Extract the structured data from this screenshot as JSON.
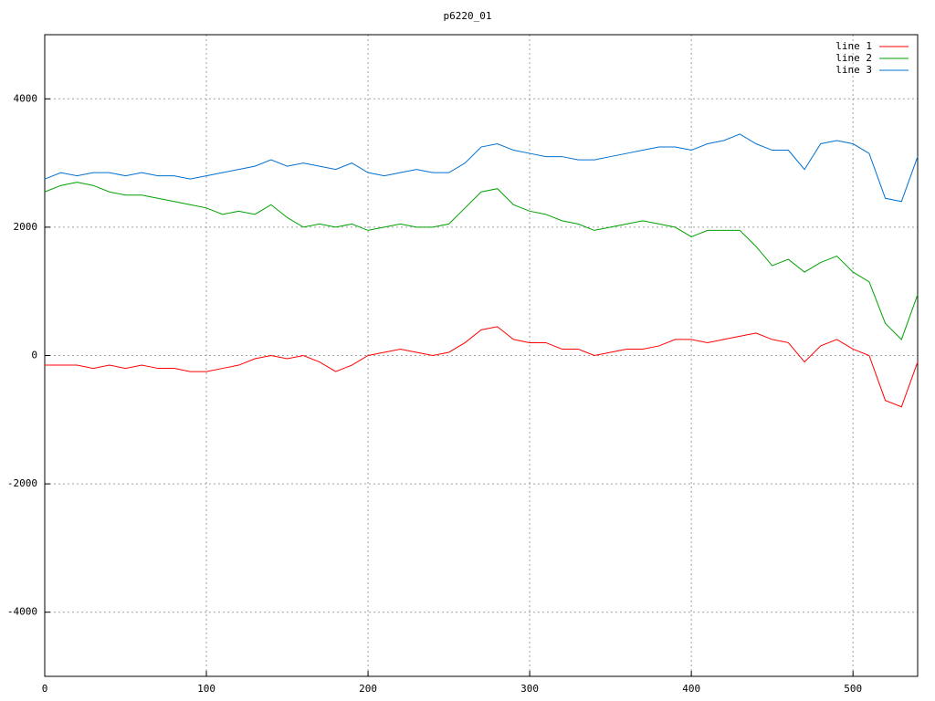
{
  "chart_data": {
    "type": "line",
    "title": "p6220_01",
    "x": [
      0,
      10,
      20,
      30,
      40,
      50,
      60,
      70,
      80,
      90,
      100,
      110,
      120,
      130,
      140,
      150,
      160,
      170,
      180,
      190,
      200,
      210,
      220,
      230,
      240,
      250,
      260,
      270,
      280,
      290,
      300,
      310,
      320,
      330,
      340,
      350,
      360,
      370,
      380,
      390,
      400,
      410,
      420,
      430,
      440,
      450,
      460,
      470,
      480,
      490,
      500,
      510,
      520,
      530,
      540
    ],
    "series": [
      {
        "name": "line 1",
        "color": "#ff0000",
        "values": [
          -150,
          -150,
          -150,
          -200,
          -150,
          -200,
          -150,
          -200,
          -200,
          -250,
          -250,
          -200,
          -150,
          -50,
          0,
          -50,
          0,
          -100,
          -250,
          -150,
          0,
          50,
          100,
          50,
          0,
          50,
          200,
          400,
          450,
          250,
          200,
          200,
          100,
          100,
          0,
          50,
          100,
          100,
          150,
          250,
          250,
          200,
          250,
          300,
          350,
          250,
          200,
          -100,
          150,
          250,
          100,
          0,
          -700,
          -800,
          -100
        ]
      },
      {
        "name": "line 2",
        "color": "#00a000",
        "values": [
          2550,
          2650,
          2700,
          2650,
          2550,
          2500,
          2500,
          2450,
          2400,
          2350,
          2300,
          2200,
          2250,
          2200,
          2350,
          2150,
          2000,
          2050,
          2000,
          2050,
          1950,
          2000,
          2050,
          2000,
          2000,
          2050,
          2300,
          2550,
          2600,
          2350,
          2250,
          2200,
          2100,
          2050,
          1950,
          2000,
          2050,
          2100,
          2050,
          2000,
          1850,
          1950,
          1950,
          1950,
          1700,
          1400,
          1500,
          1300,
          1450,
          1550,
          1300,
          1150,
          500,
          250,
          950
        ]
      },
      {
        "name": "line 3",
        "color": "#0070d0",
        "values": [
          2750,
          2850,
          2800,
          2850,
          2850,
          2800,
          2850,
          2800,
          2800,
          2750,
          2800,
          2850,
          2900,
          2950,
          3050,
          2950,
          3000,
          2950,
          2900,
          3000,
          2850,
          2800,
          2850,
          2900,
          2850,
          2850,
          3000,
          3250,
          3300,
          3200,
          3150,
          3100,
          3100,
          3050,
          3050,
          3100,
          3150,
          3200,
          3250,
          3250,
          3200,
          3300,
          3350,
          3450,
          3300,
          3200,
          3200,
          2900,
          3300,
          3350,
          3300,
          3150,
          2450,
          2400,
          3100
        ]
      }
    ],
    "xlim": [
      0,
      540
    ],
    "xticks": [
      0,
      100,
      200,
      300,
      400,
      500
    ],
    "ylim": [
      -5000,
      5000
    ],
    "yticks": [
      -4000,
      -2000,
      0,
      2000,
      4000
    ],
    "grid": true,
    "legend": "top-right"
  }
}
